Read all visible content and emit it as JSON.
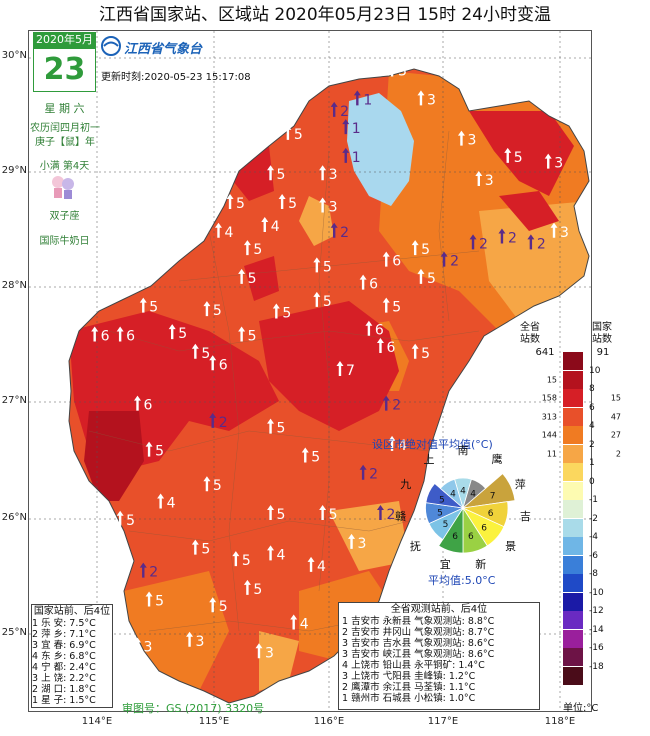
{
  "title": "江西省国家站、区域站   2020年05月23日  15时    24小时变温",
  "calendar": {
    "month": "2020年5月",
    "day": "23",
    "weekday": "星 期 六",
    "lunar_line1": "农历闰四月初一",
    "lunar_line2": "庚子【鼠】年",
    "solar_term": "小满 第4天",
    "zodiac": "双子座",
    "festival": "国际牛奶日"
  },
  "logo": "江西省气象台",
  "update_time": "更新时刻:2020-05-23 15:17:08",
  "lat_ticks": [
    "30°N",
    "29°N",
    "28°N",
    "27°N",
    "26°N",
    "25°N"
  ],
  "lon_ticks": [
    "114°E",
    "115°E",
    "116°E",
    "117°E",
    "118°E"
  ],
  "legend": {
    "left_header": "全省\n站数",
    "right_header": "国家\n站数",
    "left_total": "641",
    "right_total": "91",
    "unit": "单位:°C",
    "bins": [
      {
        "color": "#8b0a1a",
        "label": "10",
        "prov": "",
        "nat": ""
      },
      {
        "color": "#b4121e",
        "label": "8",
        "prov": "15",
        "nat": ""
      },
      {
        "color": "#d61f26",
        "label": "6",
        "prov": "158",
        "nat": "15"
      },
      {
        "color": "#e8502a",
        "label": "4",
        "prov": "313",
        "nat": "47"
      },
      {
        "color": "#f07b22",
        "label": "2",
        "prov": "144",
        "nat": "27"
      },
      {
        "color": "#f6a646",
        "label": "1",
        "prov": "11",
        "nat": "2"
      },
      {
        "color": "#fbd75e",
        "label": "0",
        "prov": "",
        "nat": ""
      },
      {
        "color": "#fdfbb1",
        "label": "-1",
        "prov": "",
        "nat": ""
      },
      {
        "color": "#dff1d6",
        "label": "-2",
        "prov": "",
        "nat": ""
      },
      {
        "color": "#a9dbe9",
        "label": "-4",
        "prov": "",
        "nat": ""
      },
      {
        "color": "#6fb6e6",
        "label": "-6",
        "prov": "",
        "nat": ""
      },
      {
        "color": "#3a7fd9",
        "label": "-8",
        "prov": "",
        "nat": ""
      },
      {
        "color": "#1f4ac7",
        "label": "-10",
        "prov": "",
        "nat": ""
      },
      {
        "color": "#1b1aa6",
        "label": "-12",
        "prov": "",
        "nat": ""
      },
      {
        "color": "#6a2ac2",
        "label": "-14",
        "prov": "",
        "nat": ""
      },
      {
        "color": "#9a1f9c",
        "label": "-16",
        "prov": "",
        "nat": ""
      },
      {
        "color": "#6d1346",
        "label": "-18",
        "prov": "",
        "nat": ""
      },
      {
        "color": "#4a0c19",
        "label": "",
        "prov": "",
        "nat": ""
      }
    ]
  },
  "rose": {
    "title": "设区市绝对值平均值(°C)",
    "average": "平均值:5.0°C",
    "sectors": [
      {
        "city": "南",
        "value": "4",
        "color": "#a9dbe9"
      },
      {
        "city": "鹰",
        "value": "4",
        "color": "#888888"
      },
      {
        "city": "萍",
        "value": "7",
        "color": "#c9a33c"
      },
      {
        "city": "吉",
        "value": "6",
        "color": "#f0d23a"
      },
      {
        "city": "景",
        "value": "6",
        "color": "#fbf23e"
      },
      {
        "city": "新",
        "value": "6",
        "color": "#9ad143"
      },
      {
        "city": "宜",
        "value": "6",
        "color": "#3fa346"
      },
      {
        "city": "抚",
        "value": "5",
        "color": "#7cc3e6"
      },
      {
        "city": "赣",
        "value": "5",
        "color": "#4f88d8"
      },
      {
        "city": "九",
        "value": "5",
        "color": "#3e5cc8"
      },
      {
        "city": "上",
        "value": "4",
        "color": "#8fc8ea"
      }
    ]
  },
  "national_table": {
    "header": "国家站前、后4位",
    "rows": [
      {
        "rank": "1",
        "station": "乐    安:",
        "value": "7.5°C"
      },
      {
        "rank": "2",
        "station": "萍    乡:",
        "value": "7.1°C"
      },
      {
        "rank": "3",
        "station": "宜    春:",
        "value": "6.9°C"
      },
      {
        "rank": "4",
        "station": "东    乡:",
        "value": "6.8°C"
      },
      {
        "rank": "4",
        "station": "宁    都:",
        "value": "2.4°C"
      },
      {
        "rank": "3",
        "station": "上    饶:",
        "value": "2.2°C"
      },
      {
        "rank": "2",
        "station": "湖    口:",
        "value": "1.8°C"
      },
      {
        "rank": "1",
        "station": "星    子:",
        "value": "1.5°C"
      }
    ]
  },
  "province_table": {
    "header": "全省观测站前、后4位",
    "rows": [
      {
        "rank": "1",
        "city": "吉安市",
        "county": "永新县",
        "station": "气象观测站:",
        "value": "8.8°C"
      },
      {
        "rank": "2",
        "city": "吉安市",
        "county": "井冈山",
        "station": "气象观测站:",
        "value": "8.7°C"
      },
      {
        "rank": "3",
        "city": "吉安市",
        "county": "吉水县",
        "station": "气象观测站:",
        "value": "8.6°C"
      },
      {
        "rank": "3",
        "city": "吉安市",
        "county": "峡江县",
        "station": "气象观测站:",
        "value": "8.6°C"
      },
      {
        "rank": "4",
        "city": "上饶市",
        "county": "铅山县",
        "station": "永平铜矿:",
        "value": "1.4°C"
      },
      {
        "rank": "3",
        "city": "上饶市",
        "county": "弋阳县",
        "station": "圭峰镇:",
        "value": "1.2°C"
      },
      {
        "rank": "2",
        "city": "鹰潭市",
        "county": "余江县",
        "station": "马荃镇:",
        "value": "1.1°C"
      },
      {
        "rank": "1",
        "city": "赣州市",
        "county": "石城县",
        "station": "小松镇:",
        "value": "1.0°C"
      }
    ]
  },
  "approval": "审图号：GS (2017) 3320号",
  "station_markers": [
    {
      "lon": 114.45,
      "lat": 26.6,
      "value": "5",
      "up": true
    },
    {
      "lon": 114.35,
      "lat": 27.0,
      "value": "6",
      "up": true
    },
    {
      "lon": 113.98,
      "lat": 27.6,
      "value": "6",
      "up": true
    },
    {
      "lon": 114.2,
      "lat": 27.6,
      "value": "6",
      "up": true
    },
    {
      "lon": 114.4,
      "lat": 27.85,
      "value": "5",
      "up": true
    },
    {
      "lon": 114.65,
      "lat": 27.62,
      "value": "5",
      "up": true
    },
    {
      "lon": 114.85,
      "lat": 27.45,
      "value": "5",
      "up": true
    },
    {
      "lon": 115.0,
      "lat": 27.35,
      "value": "6",
      "up": true
    },
    {
      "lon": 115.25,
      "lat": 27.6,
      "value": "5",
      "up": true
    },
    {
      "lon": 114.95,
      "lat": 27.82,
      "value": "5",
      "up": true
    },
    {
      "lon": 115.55,
      "lat": 27.8,
      "value": "5",
      "up": true
    },
    {
      "lon": 115.9,
      "lat": 27.9,
      "value": "5",
      "up": true
    },
    {
      "lon": 115.25,
      "lat": 28.1,
      "value": "5",
      "up": true
    },
    {
      "lon": 114.65,
      "lat": 28.35,
      "value": "4",
      "up": true
    },
    {
      "lon": 115.05,
      "lat": 28.5,
      "value": "4",
      "up": true
    },
    {
      "lon": 115.15,
      "lat": 28.75,
      "value": "5",
      "up": true
    },
    {
      "lon": 115.45,
      "lat": 28.55,
      "value": "4",
      "up": true
    },
    {
      "lon": 115.6,
      "lat": 28.75,
      "value": "5",
      "up": true
    },
    {
      "lon": 115.95,
      "lat": 28.72,
      "value": "3",
      "up": true
    },
    {
      "lon": 116.05,
      "lat": 28.5,
      "value": "2",
      "up": true
    },
    {
      "lon": 115.9,
      "lat": 28.2,
      "value": "5",
      "up": true
    },
    {
      "lon": 115.3,
      "lat": 28.35,
      "value": "5",
      "up": true
    },
    {
      "lon": 114.4,
      "lat": 28.65,
      "value": "4",
      "up": true
    },
    {
      "lon": 114.65,
      "lat": 28.95,
      "value": "5",
      "up": true
    },
    {
      "lon": 114.95,
      "lat": 29.15,
      "value": "5",
      "up": true
    },
    {
      "lon": 115.3,
      "lat": 29.3,
      "value": "5",
      "up": true
    },
    {
      "lon": 115.65,
      "lat": 29.35,
      "value": "5",
      "up": true
    },
    {
      "lon": 115.5,
      "lat": 29.0,
      "value": "5",
      "up": true
    },
    {
      "lon": 115.95,
      "lat": 29.0,
      "value": "3",
      "up": true
    },
    {
      "lon": 116.25,
      "lat": 29.65,
      "value": "1",
      "up": true
    },
    {
      "lon": 116.05,
      "lat": 29.55,
      "value": "2",
      "up": true
    },
    {
      "lon": 116.15,
      "lat": 29.4,
      "value": "1",
      "up": true
    },
    {
      "lon": 116.15,
      "lat": 29.15,
      "value": "1",
      "up": true
    },
    {
      "lon": 116.55,
      "lat": 29.9,
      "value": "3",
      "up": true
    },
    {
      "lon": 116.8,
      "lat": 29.65,
      "value": "3",
      "up": true
    },
    {
      "lon": 117.15,
      "lat": 29.3,
      "value": "3",
      "up": true
    },
    {
      "lon": 117.55,
      "lat": 29.15,
      "value": "5",
      "up": true
    },
    {
      "lon": 117.9,
      "lat": 29.1,
      "value": "3",
      "up": true
    },
    {
      "lon": 117.3,
      "lat": 28.95,
      "value": "3",
      "up": true
    },
    {
      "lon": 117.95,
      "lat": 28.5,
      "value": "3",
      "up": true
    },
    {
      "lon": 117.75,
      "lat": 28.4,
      "value": "2",
      "up": true
    },
    {
      "lon": 117.5,
      "lat": 28.45,
      "value": "2",
      "up": true
    },
    {
      "lon": 117.25,
      "lat": 28.4,
      "value": "2",
      "up": true
    },
    {
      "lon": 117.0,
      "lat": 28.25,
      "value": "2",
      "up": true
    },
    {
      "lon": 116.75,
      "lat": 28.35,
      "value": "5",
      "up": true
    },
    {
      "lon": 116.5,
      "lat": 28.25,
      "value": "6",
      "up": true
    },
    {
      "lon": 116.3,
      "lat": 28.05,
      "value": "6",
      "up": true
    },
    {
      "lon": 116.5,
      "lat": 27.85,
      "value": "5",
      "up": true
    },
    {
      "lon": 116.8,
      "lat": 28.1,
      "value": "5",
      "up": true
    },
    {
      "lon": 116.35,
      "lat": 27.65,
      "value": "6",
      "up": true
    },
    {
      "lon": 116.1,
      "lat": 27.3,
      "value": "7",
      "up": true
    },
    {
      "lon": 116.5,
      "lat": 27.0,
      "value": "2",
      "up": true
    },
    {
      "lon": 116.75,
      "lat": 27.45,
      "value": "5",
      "up": true
    },
    {
      "lon": 116.45,
      "lat": 27.5,
      "value": "6",
      "up": true
    },
    {
      "lon": 116.55,
      "lat": 26.65,
      "value": "4",
      "up": true
    },
    {
      "lon": 116.3,
      "lat": 26.4,
      "value": "2",
      "up": true
    },
    {
      "lon": 116.45,
      "lat": 26.05,
      "value": "2",
      "up": true
    },
    {
      "lon": 116.2,
      "lat": 25.8,
      "value": "3",
      "up": true
    },
    {
      "lon": 115.8,
      "lat": 26.55,
      "value": "5",
      "up": true
    },
    {
      "lon": 115.5,
      "lat": 26.8,
      "value": "5",
      "up": true
    },
    {
      "lon": 115.0,
      "lat": 26.85,
      "value": "2",
      "up": true
    },
    {
      "lon": 114.95,
      "lat": 26.3,
      "value": "5",
      "up": true
    },
    {
      "lon": 114.55,
      "lat": 26.15,
      "value": "4",
      "up": true
    },
    {
      "lon": 114.2,
      "lat": 26.0,
      "value": "5",
      "up": true
    },
    {
      "lon": 114.85,
      "lat": 25.75,
      "value": "5",
      "up": true
    },
    {
      "lon": 115.2,
      "lat": 25.65,
      "value": "5",
      "up": true
    },
    {
      "lon": 115.5,
      "lat": 26.05,
      "value": "5",
      "up": true
    },
    {
      "lon": 115.95,
      "lat": 26.05,
      "value": "5",
      "up": true
    },
    {
      "lon": 115.5,
      "lat": 25.7,
      "value": "4",
      "up": true
    },
    {
      "lon": 115.85,
      "lat": 25.6,
      "value": "4",
      "up": true
    },
    {
      "lon": 114.4,
      "lat": 25.55,
      "value": "2",
      "up": true
    },
    {
      "lon": 114.15,
      "lat": 25.55,
      "value": "5",
      "up": true
    },
    {
      "lon": 114.45,
      "lat": 25.3,
      "value": "5",
      "up": true
    },
    {
      "lon": 115.0,
      "lat": 25.25,
      "value": "5",
      "up": true
    },
    {
      "lon": 115.3,
      "lat": 25.4,
      "value": "5",
      "up": true
    },
    {
      "lon": 115.7,
      "lat": 25.1,
      "value": "4",
      "up": true
    },
    {
      "lon": 114.8,
      "lat": 24.95,
      "value": "3",
      "up": true
    },
    {
      "lon": 115.4,
      "lat": 24.85,
      "value": "3",
      "up": true
    },
    {
      "lon": 114.35,
      "lat": 24.9,
      "value": "3",
      "up": true
    }
  ]
}
